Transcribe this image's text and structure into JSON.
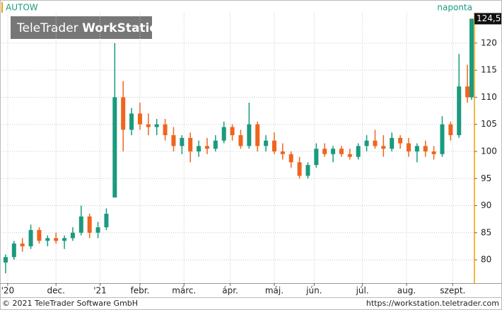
{
  "chart_data": {
    "type": "candlestick",
    "title": "AUTOW",
    "subtitle": "naponta",
    "watermark": [
      "TeleTrader",
      "WorkStation"
    ],
    "copyright": "© 2021 TeleTrader Software GmbH",
    "url": "https://workstation.teletrader.com",
    "up_color": "#1a9a7e",
    "down_color": "#f0641e",
    "grid": true,
    "xlim": [
      0,
      225
    ],
    "ylim": [
      75.7,
      125.6
    ],
    "yticks": [
      80,
      85,
      90,
      95,
      100,
      105,
      110,
      115,
      120
    ],
    "xticks": [
      {
        "value": 3,
        "label": "'20"
      },
      {
        "value": 26,
        "label": "dec."
      },
      {
        "value": 47,
        "label": "'21"
      },
      {
        "value": 66,
        "label": "febr."
      },
      {
        "value": 87,
        "label": "márc."
      },
      {
        "value": 109,
        "label": "ápr."
      },
      {
        "value": 130,
        "label": "máj."
      },
      {
        "value": 149,
        "label": "jún."
      },
      {
        "value": 172,
        "label": "júl."
      },
      {
        "value": 193,
        "label": "aug."
      },
      {
        "value": 215,
        "label": "szept."
      }
    ],
    "last": {
      "value": 124.5,
      "label": "124,5"
    },
    "x": [
      2,
      6,
      10,
      14,
      18,
      22,
      26,
      30,
      34,
      38,
      42,
      46,
      50,
      54,
      58,
      62,
      66,
      70,
      74,
      78,
      82,
      86,
      90,
      94,
      98,
      102,
      106,
      110,
      114,
      118,
      122,
      126,
      130,
      134,
      138,
      142,
      146,
      150,
      154,
      158,
      162,
      166,
      170,
      174,
      178,
      182,
      186,
      190,
      194,
      198,
      202,
      206,
      210,
      214,
      218,
      222,
      224
    ],
    "open": [
      79.5,
      80.5,
      83,
      82.5,
      85.5,
      83.5,
      84,
      83.5,
      84,
      85,
      88,
      85,
      86,
      91.5,
      110,
      104,
      107,
      105,
      104.5,
      105,
      103,
      101,
      102.5,
      100,
      101,
      100.5,
      102,
      104.5,
      103,
      101,
      105,
      101,
      102,
      100,
      99.5,
      98,
      95.5,
      97.5,
      100.5,
      99.5,
      100.5,
      99.5,
      99,
      101,
      102,
      101,
      100.5,
      102.5,
      101.5,
      100,
      101,
      100,
      99.5,
      105,
      103,
      112,
      110
    ],
    "high": [
      81,
      83.5,
      84,
      86.5,
      86,
      84.5,
      85,
      84.5,
      86,
      90,
      88.5,
      87,
      89.5,
      120,
      113,
      108,
      109,
      107,
      106,
      106,
      104.5,
      103,
      103.5,
      102,
      102.5,
      103,
      105.5,
      105,
      104,
      109,
      105.5,
      103,
      103.5,
      101.5,
      100,
      99,
      98,
      101.5,
      101.5,
      101,
      101,
      100.5,
      101.5,
      103,
      104,
      103,
      103.5,
      103,
      102.5,
      101.5,
      102,
      101,
      106.5,
      105.5,
      118,
      116,
      124.5
    ],
    "low": [
      77.5,
      80,
      81.5,
      82,
      83,
      82.5,
      83,
      82,
      83.5,
      84.5,
      84,
      84,
      85.5,
      91.5,
      100,
      103,
      104,
      103,
      103,
      102,
      100,
      99.5,
      98,
      99,
      99.5,
      100,
      101.5,
      102,
      100.5,
      100.5,
      100,
      100,
      99.5,
      98.5,
      97,
      95,
      95,
      97,
      99,
      98,
      99,
      98.5,
      98.5,
      100,
      100.5,
      99,
      100,
      100.5,
      99,
      98,
      99,
      98.5,
      99,
      102,
      102.5,
      109,
      109.5
    ],
    "close": [
      80.5,
      83,
      82.5,
      85.5,
      83.5,
      84,
      83.5,
      84,
      85,
      88,
      85,
      86,
      88.5,
      110,
      104,
      107,
      105,
      104.5,
      105,
      103,
      101,
      102.5,
      100,
      101,
      100.5,
      102,
      104.5,
      103,
      101,
      105,
      101,
      102,
      100,
      99.5,
      98,
      95.5,
      97.5,
      100.5,
      99.5,
      100.5,
      99.5,
      99,
      101,
      102,
      101,
      100.5,
      102.5,
      101.5,
      100,
      101,
      100,
      99.5,
      105,
      103,
      112,
      110,
      124.5
    ]
  }
}
